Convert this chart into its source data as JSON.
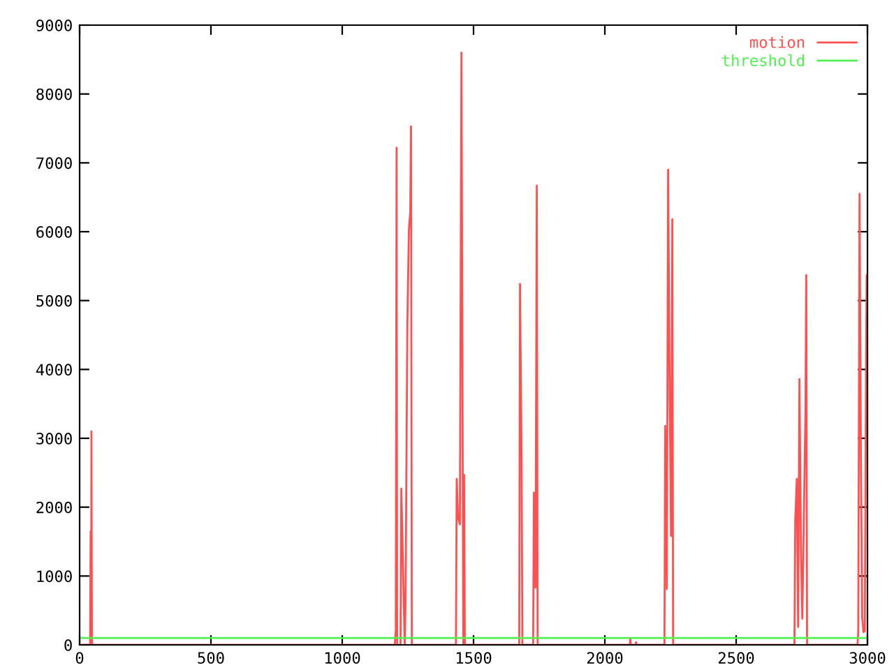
{
  "chart_data": {
    "type": "line",
    "series": [
      {
        "name": "motion",
        "color": "#ff5050",
        "x": [
          0,
          40,
          42,
          44,
          45,
          47,
          1200,
          1204,
          1207,
          1209,
          1222,
          1225,
          1238,
          1241,
          1248,
          1254,
          1259,
          1262,
          1265,
          1433,
          1436,
          1441,
          1448,
          1454,
          1461,
          1464,
          1467,
          1674,
          1677,
          1683,
          1686,
          1727,
          1730,
          1736,
          1741,
          1744,
          2095,
          2097,
          2099,
          2117,
          2119,
          2121,
          2227,
          2230,
          2236,
          2241,
          2246,
          2252,
          2257,
          2260,
          2722,
          2725,
          2731,
          2736,
          2741,
          2747,
          2752,
          2764,
          2767,
          2770,
          2962,
          2965,
          2970,
          2975,
          2980,
          2985,
          2990,
          2994,
          2997,
          2999,
          3000
        ],
        "values": [
          0,
          0,
          1650,
          0,
          3100,
          0,
          0,
          210,
          7220,
          0,
          0,
          2270,
          0,
          580,
          4660,
          6040,
          6280,
          7530,
          0,
          0,
          2410,
          1850,
          1750,
          8600,
          0,
          2470,
          0,
          0,
          5240,
          2700,
          0,
          0,
          2210,
          830,
          6670,
          0,
          0,
          85,
          0,
          0,
          40,
          0,
          0,
          3180,
          810,
          6900,
          4090,
          1580,
          6180,
          0,
          0,
          1800,
          2410,
          260,
          3860,
          1310,
          380,
          3410,
          5370,
          0,
          0,
          185,
          6550,
          2800,
          400,
          185,
          200,
          3530,
          5370,
          3000,
          5050
        ]
      }
    ],
    "ref_lines": [
      {
        "axis": "y",
        "value": 100,
        "label": "threshold",
        "color": "#50f050"
      }
    ],
    "xlim": [
      0,
      3000
    ],
    "xticks": [
      0,
      500,
      1000,
      1500,
      2000,
      2500,
      3000
    ],
    "ylim": [
      0,
      9000
    ],
    "yticks": [
      0,
      1000,
      2000,
      3000,
      4000,
      5000,
      6000,
      7000,
      8000,
      9000
    ],
    "grid": false,
    "legend": "top right",
    "marker": "none",
    "line_style": "solid"
  }
}
